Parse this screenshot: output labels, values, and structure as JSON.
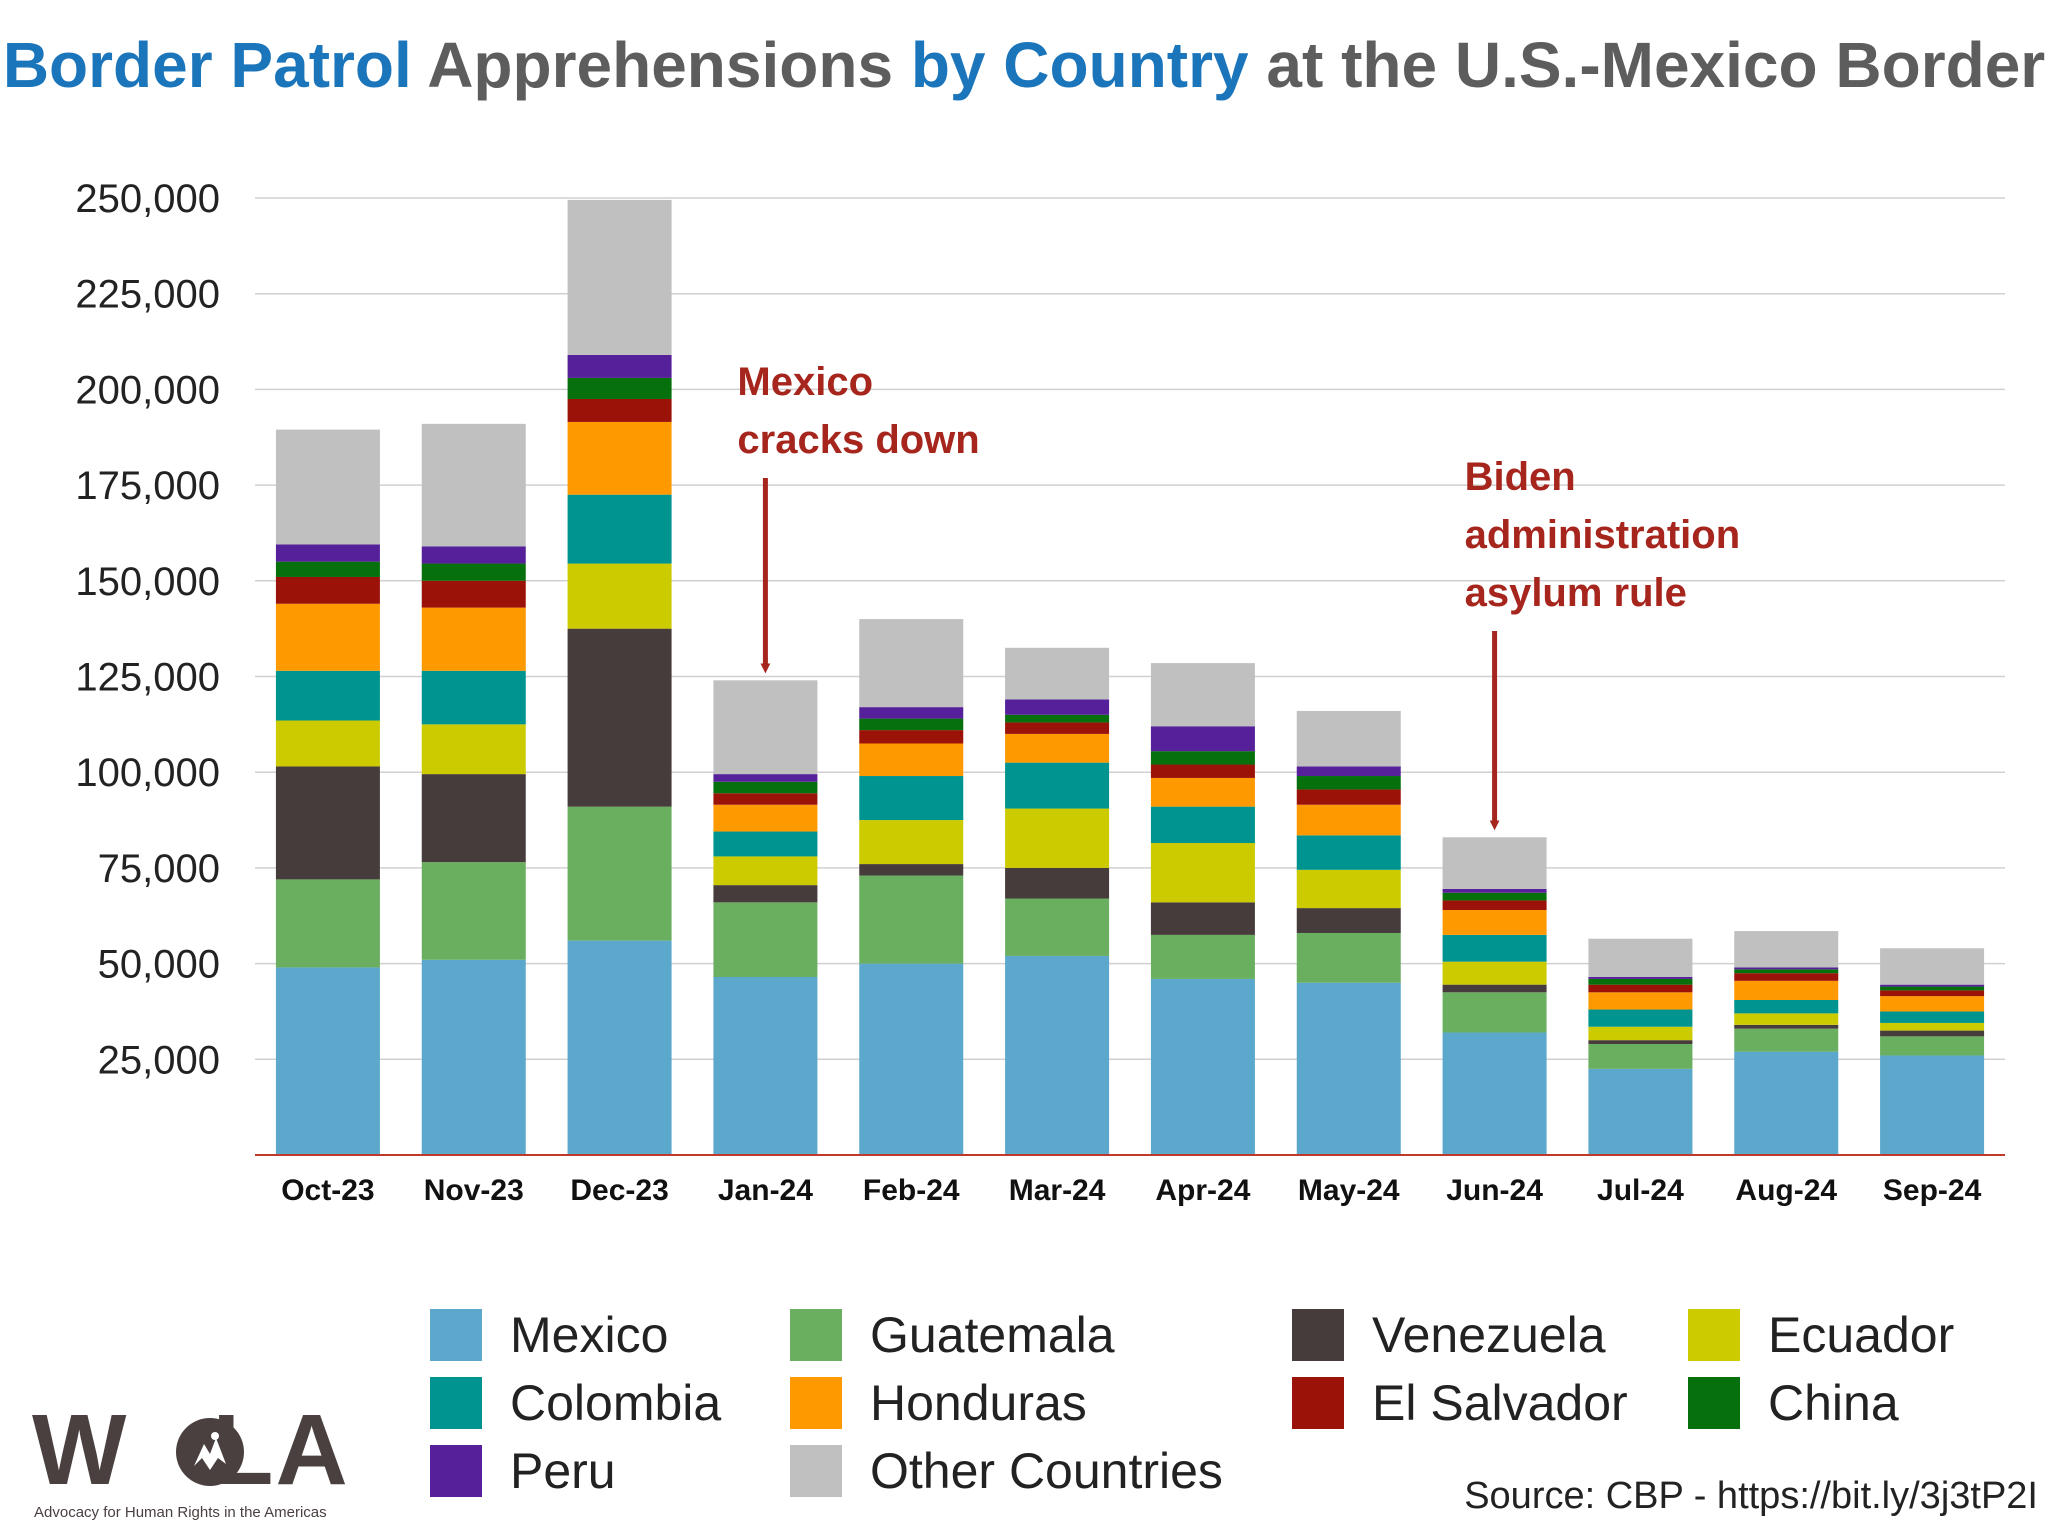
{
  "title": {
    "part1": "Border Patrol",
    "part2": " Apprehensions ",
    "part3": "by Country",
    "part4": " at the U.S.-Mexico Border"
  },
  "chart_data": {
    "type": "bar",
    "stacked": true,
    "categories": [
      "Oct-23",
      "Nov-23",
      "Dec-23",
      "Jan-24",
      "Feb-24",
      "Mar-24",
      "Apr-24",
      "May-24",
      "Jun-24",
      "Jul-24",
      "Aug-24",
      "Sep-24"
    ],
    "ylim": [
      0,
      250000
    ],
    "yticks": [
      "25,000",
      "50,000",
      "75,000",
      "100,000",
      "125,000",
      "150,000",
      "175,000",
      "200,000",
      "225,000",
      "250,000"
    ],
    "ytick_values": [
      25000,
      50000,
      75000,
      100000,
      125000,
      150000,
      175000,
      200000,
      225000,
      250000
    ],
    "grid": true,
    "legend_position": "bottom",
    "series": [
      {
        "name": "Mexico",
        "color": "#5ba8cc",
        "values": [
          49000,
          51000,
          56000,
          46500,
          50000,
          52000,
          46000,
          45000,
          32000,
          22500,
          27000,
          26000
        ]
      },
      {
        "name": "Guatemala",
        "color": "#6aaf5f",
        "values": [
          23000,
          25500,
          35000,
          19500,
          23000,
          15000,
          11500,
          13000,
          10500,
          6500,
          6000,
          5000
        ]
      },
      {
        "name": "Venezuela",
        "color": "#463c3b",
        "values": [
          29500,
          23000,
          46500,
          4500,
          3000,
          8000,
          8500,
          6500,
          2000,
          1000,
          1000,
          1500
        ]
      },
      {
        "name": "Ecuador",
        "color": "#cccb00",
        "values": [
          12000,
          13000,
          17000,
          7500,
          11500,
          15500,
          15500,
          10000,
          6000,
          3500,
          3000,
          2000
        ]
      },
      {
        "name": "Colombia",
        "color": "#009490",
        "values": [
          13000,
          14000,
          18000,
          6500,
          11500,
          12000,
          9500,
          9000,
          7000,
          4500,
          3500,
          3000
        ]
      },
      {
        "name": "Honduras",
        "color": "#ff9900",
        "values": [
          17500,
          16500,
          19000,
          7000,
          8500,
          7500,
          7500,
          8000,
          6500,
          4500,
          5000,
          4000
        ]
      },
      {
        "name": "El Salvador",
        "color": "#9b1208",
        "values": [
          7000,
          7000,
          6000,
          3000,
          3500,
          3000,
          3500,
          4000,
          2500,
          2000,
          2000,
          1500
        ]
      },
      {
        "name": "China",
        "color": "#05700c",
        "values": [
          4000,
          4500,
          5500,
          3000,
          3000,
          2000,
          3500,
          3500,
          2000,
          1500,
          1000,
          1000
        ]
      },
      {
        "name": "Peru",
        "color": "#55209a",
        "values": [
          4500,
          4500,
          6000,
          2000,
          3000,
          4000,
          6500,
          2500,
          1000,
          500,
          500,
          500
        ]
      },
      {
        "name": "Other Countries",
        "color": "#c0c0c0",
        "values": [
          30000,
          32000,
          40500,
          24500,
          23000,
          13500,
          16500,
          14500,
          13500,
          10000,
          9500,
          9500
        ]
      }
    ],
    "annotations": [
      {
        "text_lines": [
          "Mexico",
          "cracks down"
        ],
        "category": "Jan-24",
        "color": "#a6261d"
      },
      {
        "text_lines": [
          "Biden",
          "administration",
          "asylum rule"
        ],
        "category": "Jun-24",
        "color": "#a6261d"
      }
    ]
  },
  "legend": [
    {
      "label": "Mexico",
      "color": "#5ba8cc"
    },
    {
      "label": "Guatemala",
      "color": "#6aaf5f"
    },
    {
      "label": "Venezuela",
      "color": "#463c3b"
    },
    {
      "label": "Ecuador",
      "color": "#cccb00"
    },
    {
      "label": "Colombia",
      "color": "#009490"
    },
    {
      "label": "Honduras",
      "color": "#ff9900"
    },
    {
      "label": "El Salvador",
      "color": "#9b1208"
    },
    {
      "label": "China",
      "color": "#05700c"
    },
    {
      "label": "Peru",
      "color": "#55209a"
    },
    {
      "label": "Other Countries",
      "color": "#c0c0c0"
    }
  ],
  "logo": {
    "text_left": "W",
    "text_right": "LA",
    "tagline": "Advocacy for Human Rights in the Americas",
    "icon": "bird-emblem-icon"
  },
  "source": "Source: CBP - https://bit.ly/3j3tP2I"
}
